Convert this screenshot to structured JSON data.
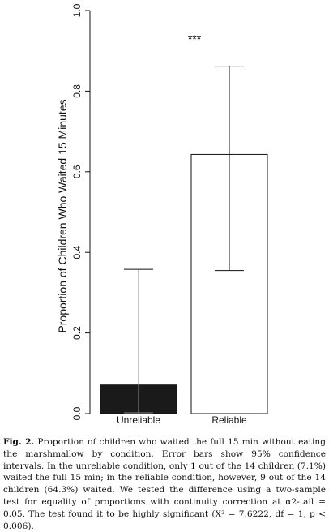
{
  "chart_data": {
    "type": "bar",
    "categories": [
      "Unreliable",
      "Reliable"
    ],
    "values": [
      0.071,
      0.643
    ],
    "error_bars": [
      {
        "lower": 0.002,
        "upper": 0.358
      },
      {
        "lower": 0.355,
        "upper": 0.862
      }
    ],
    "bar_colors": [
      "#1a1a1a",
      "#ffffff"
    ],
    "ylabel": "Proportion of Children Who Waited 15 Minutes",
    "xlabel": "",
    "ylim": [
      0,
      1
    ],
    "yticks": [
      0.0,
      0.2,
      0.4,
      0.6,
      0.8,
      1.0
    ],
    "ytick_labels": [
      "0.0",
      "0.2",
      "0.4",
      "0.6",
      "0.8",
      "1.0"
    ],
    "annotation": "***",
    "grid": false
  },
  "caption": {
    "label": "Fig. 2.",
    "text": "Proportion of children who waited the full 15 min without eating the marshmallow by condition. Error bars show 95% confidence intervals. In the unreliable condition, only 1 out of the 14 children (7.1%) waited the full 15 min; in the reliable condition, however, 9 out of the 14 children (64.3%) waited. We tested the difference using a two-sample test for equality of proportions with continuity correction at α2-tail = 0.05. The test found it to be highly significant (X² = 7.6222, df = 1, p < 0.006)."
  }
}
